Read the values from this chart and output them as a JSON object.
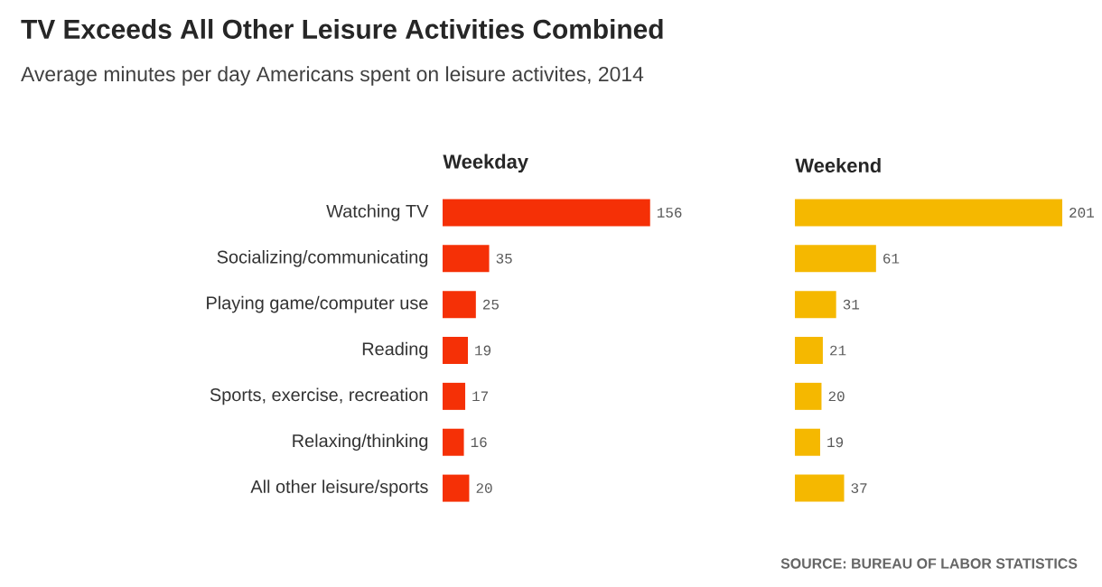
{
  "chart_data": [
    {
      "type": "other",
      "title": "TV Exceeds All Other Leisure Activities Combined",
      "subtitle": "Average minutes per day Americans spent on leisure activites, 2014",
      "annotations": [
        "SOURCE: BUREAU OF LABOR STATISTICS"
      ]
    },
    {
      "type": "bar",
      "orientation": "horizontal",
      "title": "Weekday",
      "categories": [
        "Watching TV",
        "Socializing/communicating",
        "Playing game/computer use",
        "Reading",
        "Sports, exercise, recreation",
        "Relaxing/thinking",
        "All other leisure/sports"
      ],
      "values": [
        156,
        35,
        25,
        19,
        17,
        16,
        20
      ],
      "color": "#f53006",
      "data_labels": true,
      "tick_labels": "y"
    },
    {
      "type": "bar",
      "orientation": "horizontal",
      "title": "Weekend",
      "categories": [
        null,
        null,
        null,
        null,
        null,
        null,
        null
      ],
      "values": [
        201,
        61,
        31,
        21,
        20,
        19,
        37
      ],
      "color": "#f5b800",
      "data_labels": true,
      "tick_labels": false
    }
  ]
}
